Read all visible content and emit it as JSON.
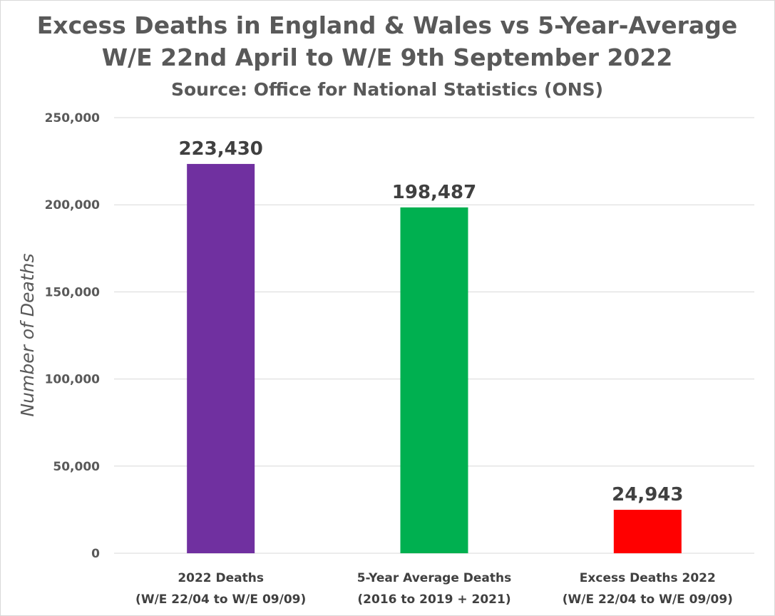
{
  "chart_data": {
    "type": "bar",
    "title": "Excess Deaths in England & Wales vs 5-Year-Average",
    "subtitle": "W/E 22nd April to W/E 9th September 2022",
    "source": "Source: Office for National Statistics (ONS)",
    "ylabel": "Number of Deaths",
    "xlabel": "",
    "ylim": [
      0,
      250000
    ],
    "yticks": [
      0,
      50000,
      100000,
      150000,
      200000,
      250000
    ],
    "ytick_labels": [
      "0",
      "50,000",
      "100,000",
      "150,000",
      "200,000",
      "250,000"
    ],
    "grid": true,
    "legend": "none",
    "categories": [
      [
        "2022 Deaths",
        "(W/E 22/04 to W/E 09/09)"
      ],
      [
        "5-Year Average Deaths",
        "(2016 to 2019 + 2021)"
      ],
      [
        "Excess Deaths 2022",
        "(W/E 22/04 to W/E 09/09)"
      ]
    ],
    "values": [
      223430,
      198487,
      24943
    ],
    "data_labels": [
      "223,430",
      "198,487",
      "24,943"
    ],
    "colors": [
      "#7030a0",
      "#00b050",
      "#ff0000"
    ]
  }
}
